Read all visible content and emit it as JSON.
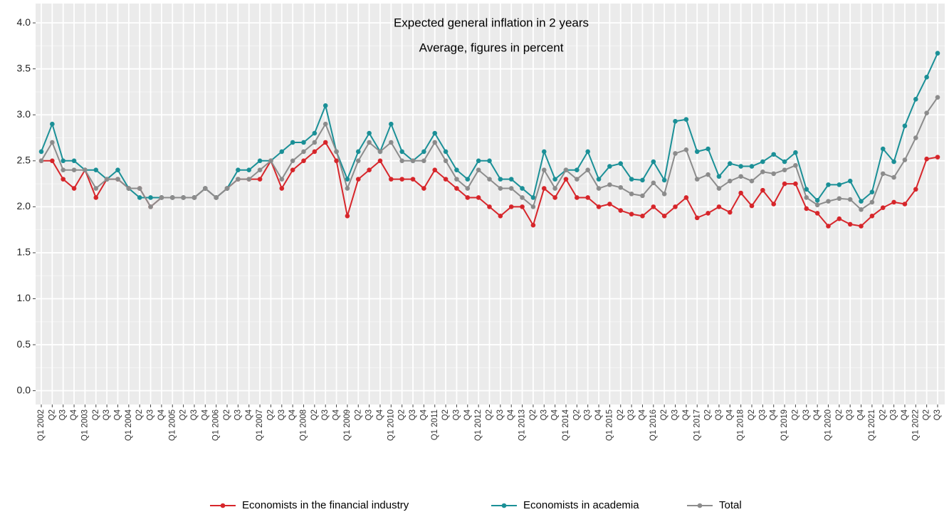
{
  "chart_data": {
    "type": "line",
    "title": "Expected general inflation in 2 years",
    "subtitle": "Average, figures in percent",
    "categories": [
      "Q1 2002",
      "Q2",
      "Q3",
      "Q4",
      "Q1 2003",
      "Q2",
      "Q3",
      "Q4",
      "Q1 2004",
      "Q2",
      "Q3",
      "Q4",
      "Q1 2005",
      "Q2",
      "Q3",
      "Q4",
      "Q1 2006",
      "Q2",
      "Q3",
      "Q4",
      "Q1 2007",
      "Q2",
      "Q3",
      "Q4",
      "Q1 2008",
      "Q2",
      "Q3",
      "Q4",
      "Q1 2009",
      "Q2",
      "Q3",
      "Q4",
      "Q1 2010",
      "Q2",
      "Q3",
      "Q4",
      "Q1 2011",
      "Q2",
      "Q3",
      "Q4",
      "Q1 2012",
      "Q2",
      "Q3",
      "Q4",
      "Q1 2013",
      "Q2",
      "Q3",
      "Q4",
      "Q1 2014",
      "Q2",
      "Q3",
      "Q4",
      "Q1 2015",
      "Q2",
      "Q3",
      "Q4",
      "Q1 2016",
      "Q2",
      "Q3",
      "Q4",
      "Q1 2017",
      "Q2",
      "Q3",
      "Q4",
      "Q1 2018",
      "Q2",
      "Q3",
      "Q4",
      "Q1 2019",
      "Q2",
      "Q3",
      "Q4",
      "Q1 2020",
      "Q2",
      "Q3",
      "Q4",
      "Q1 2021",
      "Q2",
      "Q3",
      "Q4",
      "Q1 2022",
      "Q2",
      "Q3"
    ],
    "series": [
      {
        "name": "Economists in the financial industry",
        "color": "#d7262b",
        "values": [
          2.5,
          2.5,
          2.3,
          2.2,
          2.4,
          2.1,
          2.3,
          2.3,
          2.2,
          2.2,
          2.0,
          2.1,
          2.1,
          2.1,
          2.1,
          2.2,
          2.1,
          2.2,
          2.3,
          2.3,
          2.3,
          2.5,
          2.2,
          2.4,
          2.5,
          2.6,
          2.7,
          2.5,
          1.9,
          2.3,
          2.4,
          2.5,
          2.3,
          2.3,
          2.3,
          2.2,
          2.4,
          2.3,
          2.2,
          2.1,
          2.1,
          2.0,
          1.9,
          2.0,
          2.0,
          1.8,
          2.2,
          2.1,
          2.3,
          2.1,
          2.1,
          2.0,
          2.03,
          1.96,
          1.92,
          1.9,
          2.0,
          1.9,
          2.0,
          2.1,
          1.88,
          1.93,
          2.0,
          1.94,
          2.15,
          2.01,
          2.18,
          2.03,
          2.25,
          2.25,
          1.98,
          1.93,
          1.79,
          1.87,
          1.81,
          1.79,
          1.9,
          1.99,
          2.05,
          2.03,
          2.19,
          2.52,
          2.54
        ]
      },
      {
        "name": "Economists in academia",
        "color": "#1b9097",
        "values": [
          2.6,
          2.9,
          2.5,
          2.5,
          2.4,
          2.4,
          2.3,
          2.4,
          2.2,
          2.1,
          2.1,
          2.1,
          2.1,
          2.1,
          2.1,
          2.2,
          2.1,
          2.2,
          2.4,
          2.4,
          2.5,
          2.5,
          2.6,
          2.7,
          2.7,
          2.8,
          3.1,
          2.6,
          2.3,
          2.6,
          2.8,
          2.6,
          2.9,
          2.6,
          2.5,
          2.6,
          2.8,
          2.6,
          2.4,
          2.3,
          2.5,
          2.5,
          2.3,
          2.3,
          2.2,
          2.1,
          2.6,
          2.3,
          2.4,
          2.4,
          2.6,
          2.3,
          2.44,
          2.47,
          2.3,
          2.29,
          2.49,
          2.29,
          2.93,
          2.95,
          2.6,
          2.63,
          2.33,
          2.47,
          2.44,
          2.44,
          2.49,
          2.57,
          2.49,
          2.59,
          2.19,
          2.07,
          2.24,
          2.24,
          2.28,
          2.06,
          2.16,
          2.63,
          2.49,
          2.88,
          3.17,
          3.41,
          3.67
        ]
      },
      {
        "name": "Total",
        "color": "#8c8c8c",
        "values": [
          2.5,
          2.7,
          2.4,
          2.4,
          2.4,
          2.2,
          2.3,
          2.3,
          2.2,
          2.2,
          2.0,
          2.1,
          2.1,
          2.1,
          2.1,
          2.2,
          2.1,
          2.2,
          2.3,
          2.3,
          2.4,
          2.5,
          2.3,
          2.5,
          2.6,
          2.7,
          2.9,
          2.6,
          2.2,
          2.5,
          2.7,
          2.6,
          2.7,
          2.5,
          2.5,
          2.5,
          2.7,
          2.5,
          2.3,
          2.2,
          2.4,
          2.3,
          2.2,
          2.2,
          2.1,
          2.0,
          2.4,
          2.2,
          2.4,
          2.3,
          2.4,
          2.2,
          2.24,
          2.21,
          2.14,
          2.12,
          2.26,
          2.14,
          2.58,
          2.62,
          2.3,
          2.35,
          2.2,
          2.28,
          2.33,
          2.28,
          2.38,
          2.36,
          2.4,
          2.45,
          2.1,
          2.02,
          2.06,
          2.09,
          2.08,
          1.97,
          2.05,
          2.36,
          2.32,
          2.51,
          2.75,
          3.02,
          3.19
        ]
      }
    ],
    "ylim": [
      -0.15,
      4.21
    ],
    "yticks": [
      {
        "value": 0,
        "label": "0.0"
      },
      {
        "value": 0.5,
        "label": "0.5"
      },
      {
        "value": 1,
        "label": "1.0"
      },
      {
        "value": 1.5,
        "label": "1.5"
      },
      {
        "value": 2,
        "label": "2.0"
      },
      {
        "value": 2.5,
        "label": "2.5"
      },
      {
        "value": 3,
        "label": "3.0"
      },
      {
        "value": 3.5,
        "label": "3.5"
      },
      {
        "value": 4,
        "label": "4.0"
      }
    ],
    "grid": true,
    "legend": "bottom"
  }
}
